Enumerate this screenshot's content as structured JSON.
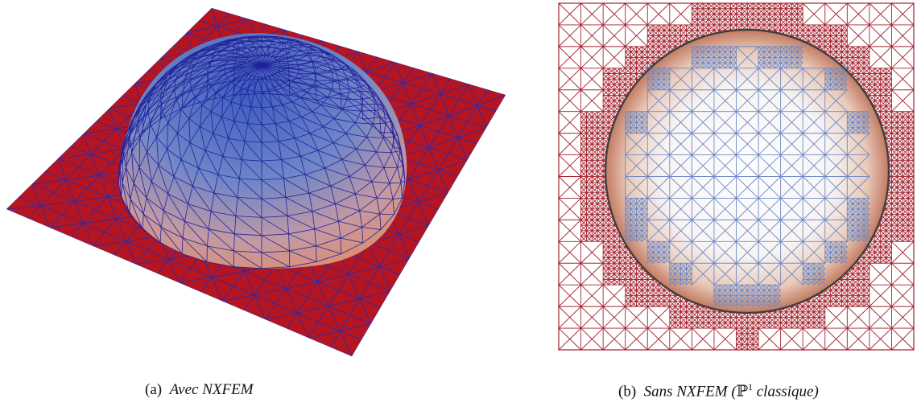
{
  "figures": [
    {
      "label": "(a)",
      "caption": "Avec NXFEM",
      "colors": {
        "plate": "#b51521",
        "mesh": "#2a2a9e",
        "dome_top": "#3a4fb2",
        "dome_base": "#e8916c"
      }
    },
    {
      "label": "(b)",
      "caption_pre": "Sans NXFEM (",
      "caption_symbol": "ℙ",
      "caption_sup": "1",
      "caption_post": " classique)",
      "colors": {
        "mesh_outer": "#9e1f2a",
        "mesh_inner": "#6f89c4",
        "circle": "#444444"
      }
    }
  ]
}
